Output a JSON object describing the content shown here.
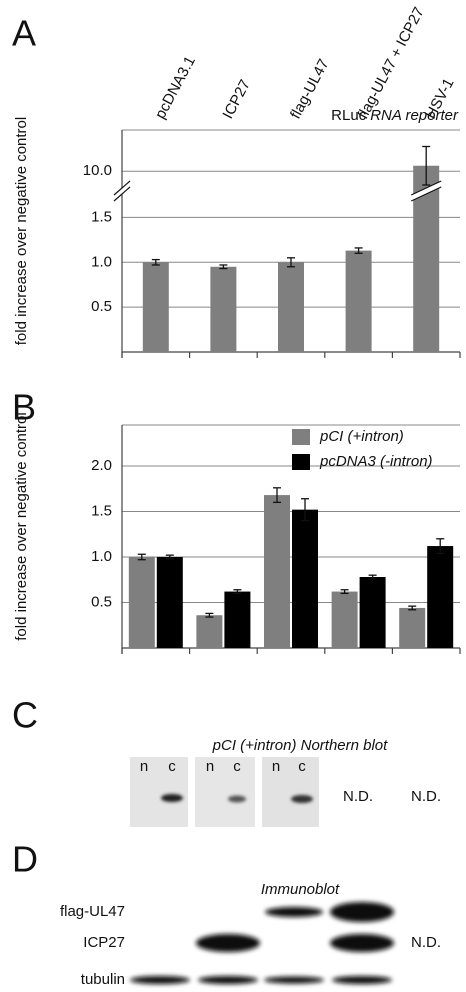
{
  "panel_labels": [
    "A",
    "B",
    "C",
    "D"
  ],
  "chart_data": [
    {
      "type": "bar",
      "categories": [
        "pcDNA3.1",
        "ICP27",
        "flag-UL47",
        "flag-UL47 + ICP27",
        "HSV-1"
      ],
      "values": [
        1.0,
        0.95,
        1.0,
        1.13,
        10.2
      ],
      "errors": [
        0.03,
        0.02,
        0.05,
        0.03,
        0.7
      ],
      "color": "#7f7f7f",
      "ylabel": "fold increase over negative control",
      "annotation": [
        "RLuc",
        "RNA reporter"
      ],
      "ylim": [
        0,
        11.5
      ],
      "ybreak": [
        1.75,
        9.5
      ],
      "yticks": [
        0.5,
        {
          "value": 1,
          "label": "1.0"
        },
        1.5,
        {
          "value": 10,
          "label": "10.0"
        }
      ],
      "grid": true
    },
    {
      "type": "grouped_bar",
      "ylabel": "fold increase over negative control",
      "series": [
        {
          "name": "pCI (+intron)",
          "color": "#7f7f7f",
          "values": [
            1.0,
            0.36,
            1.68,
            0.62,
            0.44
          ],
          "errors": [
            0.03,
            0.02,
            0.08,
            0.02,
            0.02
          ]
        },
        {
          "name": "pcDNA3 (-intron)",
          "color": "#000000",
          "values": [
            1.0,
            0.62,
            1.52,
            0.78,
            1.12
          ],
          "errors": [
            0.02,
            0.02,
            0.12,
            0.02,
            0.08
          ]
        }
      ],
      "ylim": [
        0,
        2.45
      ],
      "yticks": [
        0.5,
        {
          "value": 1,
          "label": "1.0"
        },
        1.5,
        {
          "value": 2,
          "label": "2.0"
        }
      ],
      "grid": true,
      "legend": "upper right"
    }
  ],
  "northern_blot": {
    "title": "pCI (+intron) Northern blot",
    "lanes": [
      "n",
      "c",
      "n",
      "c",
      "n",
      "c"
    ],
    "not_detected": [
      "N.D.",
      "N.D."
    ]
  },
  "immunoblot": {
    "title": "Immunoblot",
    "rows": [
      "flag-UL47",
      "ICP27",
      "tubulin"
    ],
    "not_detected": "N.D."
  }
}
